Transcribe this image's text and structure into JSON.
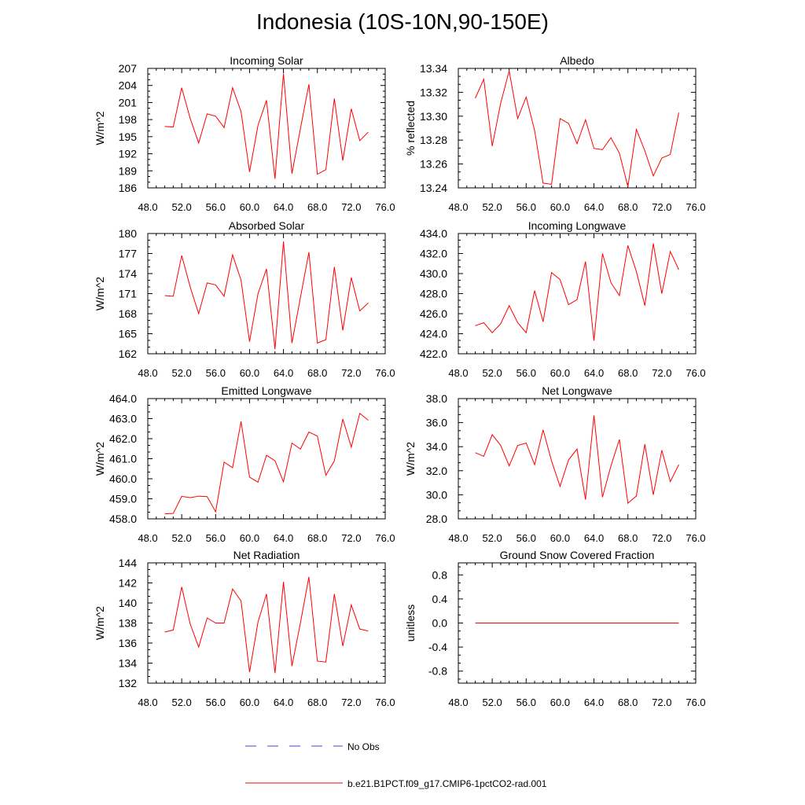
{
  "title": "Indonesia (10S-10N,90-150E)",
  "colors": {
    "model": "#ff0000",
    "obs": "#4444cc",
    "axis": "#000000"
  },
  "legend": {
    "obs_label": "No Obs",
    "model_label": "b.e21.B1PCT.f09_g17.CMIP6-1pctCO2-rad.001"
  },
  "chart_data": [
    {
      "type": "line",
      "title": "Incoming Solar",
      "ylabel": "W/m^2",
      "xlim": [
        48,
        76
      ],
      "xticks": [
        48,
        52,
        56,
        60,
        64,
        68,
        72,
        76
      ],
      "xfmt": 1,
      "ylim": [
        186,
        207
      ],
      "yticks": [
        186,
        189,
        192,
        195,
        198,
        201,
        204,
        207
      ],
      "yfmt": 0,
      "series": [
        {
          "x": [
            50,
            51,
            52,
            53,
            54,
            55,
            56,
            57,
            58,
            59,
            60,
            61,
            62,
            63,
            64,
            65,
            66,
            67,
            68,
            69,
            70,
            71,
            72,
            73,
            74
          ],
          "values": [
            196.8,
            196.7,
            203.6,
            198.2,
            193.9,
            199.0,
            198.6,
            196.6,
            203.6,
            199.4,
            188.8,
            197.0,
            201.4,
            187.6,
            206.1,
            188.5,
            196.4,
            204.2,
            188.4,
            189.2,
            201.7,
            190.8,
            199.9,
            194.3,
            195.8
          ]
        }
      ]
    },
    {
      "type": "line",
      "title": "Albedo",
      "ylabel": "% reflected",
      "xlim": [
        48,
        76
      ],
      "xticks": [
        48,
        52,
        56,
        60,
        64,
        68,
        72,
        76
      ],
      "xfmt": 1,
      "ylim": [
        13.24,
        13.34
      ],
      "yticks": [
        13.24,
        13.26,
        13.28,
        13.3,
        13.32,
        13.34
      ],
      "yfmt": 2,
      "series": [
        {
          "x": [
            50,
            51,
            52,
            53,
            54,
            55,
            56,
            57,
            58,
            59,
            60,
            61,
            62,
            63,
            64,
            65,
            66,
            67,
            68,
            69,
            70,
            71,
            72,
            73,
            74
          ],
          "values": [
            13.315,
            13.331,
            13.275,
            13.311,
            13.338,
            13.298,
            13.316,
            13.288,
            13.244,
            13.243,
            13.298,
            13.294,
            13.277,
            13.297,
            13.273,
            13.272,
            13.282,
            13.269,
            13.241,
            13.289,
            13.271,
            13.25,
            13.265,
            13.268,
            13.303
          ]
        }
      ]
    },
    {
      "type": "line",
      "title": "Absorbed Solar",
      "ylabel": "W/m^2",
      "xlim": [
        48,
        76
      ],
      "xticks": [
        48,
        52,
        56,
        60,
        64,
        68,
        72,
        76
      ],
      "xfmt": 1,
      "ylim": [
        162,
        180
      ],
      "yticks": [
        162,
        165,
        168,
        171,
        174,
        177,
        180
      ],
      "yfmt": 0,
      "series": [
        {
          "x": [
            50,
            51,
            52,
            53,
            54,
            55,
            56,
            57,
            58,
            59,
            60,
            61,
            62,
            63,
            64,
            65,
            66,
            67,
            68,
            69,
            70,
            71,
            72,
            73,
            74
          ],
          "values": [
            170.7,
            170.6,
            176.7,
            172.0,
            168.0,
            172.6,
            172.3,
            170.6,
            176.8,
            173.0,
            163.8,
            171.0,
            174.7,
            162.7,
            178.8,
            163.6,
            170.4,
            177.2,
            163.6,
            164.1,
            175.0,
            165.5,
            173.4,
            168.4,
            169.6
          ]
        }
      ]
    },
    {
      "type": "line",
      "title": "Incoming Longwave",
      "ylabel": "",
      "xlim": [
        48,
        76
      ],
      "xticks": [
        48,
        52,
        56,
        60,
        64,
        68,
        72,
        76
      ],
      "xfmt": 1,
      "ylim": [
        422,
        434
      ],
      "yticks": [
        422,
        424,
        426,
        428,
        430,
        432,
        434
      ],
      "yfmt": 1,
      "series": [
        {
          "x": [
            50,
            51,
            52,
            53,
            54,
            55,
            56,
            57,
            58,
            59,
            60,
            61,
            62,
            63,
            64,
            65,
            66,
            67,
            68,
            69,
            70,
            71,
            72,
            73,
            74
          ],
          "values": [
            424.8,
            425.1,
            424.1,
            425.0,
            426.8,
            425.1,
            424.1,
            428.3,
            425.2,
            430.1,
            429.4,
            426.9,
            427.4,
            431.2,
            423.3,
            432.0,
            429.1,
            427.8,
            432.8,
            430.2,
            426.8,
            433.0,
            428.0,
            432.2,
            430.4
          ]
        }
      ]
    },
    {
      "type": "line",
      "title": "Emitted Longwave",
      "ylabel": "W/m^2",
      "xlim": [
        48,
        76
      ],
      "xticks": [
        48,
        52,
        56,
        60,
        64,
        68,
        72,
        76
      ],
      "xfmt": 1,
      "ylim": [
        458,
        464
      ],
      "yticks": [
        458,
        459,
        460,
        461,
        462,
        463,
        464
      ],
      "yfmt": 1,
      "series": [
        {
          "x": [
            50,
            51,
            52,
            53,
            54,
            55,
            56,
            57,
            58,
            59,
            60,
            61,
            62,
            63,
            64,
            65,
            66,
            67,
            68,
            69,
            70,
            71,
            72,
            73,
            74
          ],
          "values": [
            458.25,
            458.27,
            459.12,
            459.06,
            459.13,
            459.11,
            458.35,
            460.83,
            460.55,
            462.86,
            460.08,
            459.83,
            461.17,
            460.9,
            459.85,
            461.78,
            461.48,
            462.33,
            462.13,
            460.17,
            460.89,
            462.98,
            461.58,
            463.26,
            462.92
          ]
        }
      ]
    },
    {
      "type": "line",
      "title": "Net Longwave",
      "ylabel": "W/m^2",
      "xlim": [
        48,
        76
      ],
      "xticks": [
        48,
        52,
        56,
        60,
        64,
        68,
        72,
        76
      ],
      "xfmt": 1,
      "ylim": [
        28,
        38
      ],
      "yticks": [
        28,
        30,
        32,
        34,
        36,
        38
      ],
      "yfmt": 1,
      "series": [
        {
          "x": [
            50,
            51,
            52,
            53,
            54,
            55,
            56,
            57,
            58,
            59,
            60,
            61,
            62,
            63,
            64,
            65,
            66,
            67,
            68,
            69,
            70,
            71,
            72,
            73,
            74
          ],
          "values": [
            33.5,
            33.2,
            35.0,
            34.1,
            32.4,
            34.1,
            34.3,
            32.5,
            35.4,
            32.8,
            30.7,
            32.9,
            33.8,
            29.6,
            36.6,
            29.8,
            32.4,
            34.6,
            29.3,
            29.9,
            34.2,
            30.0,
            33.7,
            31.1,
            32.5
          ]
        }
      ]
    },
    {
      "type": "line",
      "title": "Net Radiation",
      "ylabel": "W/m^2",
      "xlim": [
        48,
        76
      ],
      "xticks": [
        48,
        52,
        56,
        60,
        64,
        68,
        72,
        76
      ],
      "xfmt": 1,
      "ylim": [
        132,
        144
      ],
      "yticks": [
        132,
        134,
        136,
        138,
        140,
        142,
        144
      ],
      "yfmt": 0,
      "series": [
        {
          "x": [
            50,
            51,
            52,
            53,
            54,
            55,
            56,
            57,
            58,
            59,
            60,
            61,
            62,
            63,
            64,
            65,
            66,
            67,
            68,
            69,
            70,
            71,
            72,
            73,
            74
          ],
          "values": [
            137.1,
            137.3,
            141.6,
            137.9,
            135.6,
            138.5,
            138.0,
            138.0,
            141.4,
            140.2,
            133.1,
            138.1,
            140.9,
            133.0,
            142.1,
            133.7,
            138.0,
            142.6,
            134.2,
            134.1,
            140.9,
            135.7,
            139.8,
            137.4,
            137.2
          ]
        }
      ]
    },
    {
      "type": "line",
      "title": "Ground Snow Covered Fraction",
      "ylabel": "unitless",
      "xlim": [
        48,
        76
      ],
      "xticks": [
        48,
        52,
        56,
        60,
        64,
        68,
        72,
        76
      ],
      "xfmt": 1,
      "ylim": [
        -1.0,
        1.0
      ],
      "yticks": [
        -0.8,
        -0.4,
        0.0,
        0.4,
        0.8
      ],
      "yfmt": 1,
      "series": [
        {
          "x": [
            50,
            74
          ],
          "values": [
            0.0,
            0.0
          ]
        }
      ]
    }
  ]
}
